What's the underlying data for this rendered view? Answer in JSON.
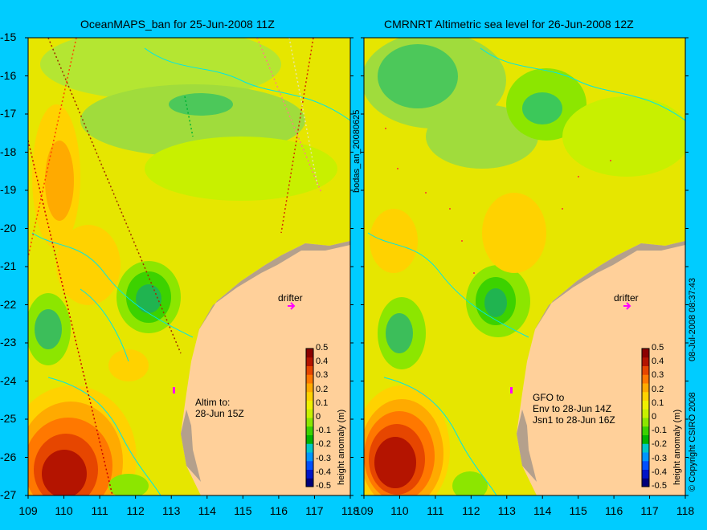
{
  "panels": [
    {
      "title": "OceanMAPS_ban for 25-Jun-2008 11Z",
      "note_lines": [
        "Altim to:",
        "28-Jun 15Z"
      ],
      "drifter_label": "drifter",
      "side_label": "bodas_an_20080625",
      "colorbar_label": "height anomaly (m)"
    },
    {
      "title": "CMRNRT Altimetric sea level  for 26-Jun-2008 12Z",
      "note_lines": [
        "GFO to",
        "Env to 28-Jun 14Z",
        "Jsn1 to 28-Jun 16Z"
      ],
      "drifter_label": "drifter",
      "side_label": "08-Jul-2008 08:37:43",
      "colorbar_label": "height anomaly (m)",
      "copyright": "© Copyright CSIRO 2008"
    }
  ],
  "axes": {
    "lat_ticks": [
      "-15",
      "-16",
      "-17",
      "-18",
      "-19",
      "-20",
      "-21",
      "-22",
      "-23",
      "-24",
      "-25",
      "-26",
      "-27"
    ],
    "lon_ticks": [
      "109",
      "110",
      "111",
      "112",
      "113",
      "114",
      "115",
      "116",
      "117",
      "118"
    ]
  },
  "colorbar": {
    "ticks": [
      "0.5",
      "0.4",
      "0.3",
      "0.2",
      "0.1",
      "0",
      "-0.1",
      "-0.2",
      "-0.3",
      "-0.4",
      "-0.5"
    ],
    "colors": [
      "#00007a",
      "#0014c8",
      "#0050ff",
      "#0096ff",
      "#00c8c8",
      "#00b400",
      "#3cd200",
      "#8ce600",
      "#c8f000",
      "#f0f000",
      "#ffd200",
      "#ffaa00",
      "#ff7800",
      "#e64600",
      "#b41400",
      "#8c0000"
    ]
  }
}
